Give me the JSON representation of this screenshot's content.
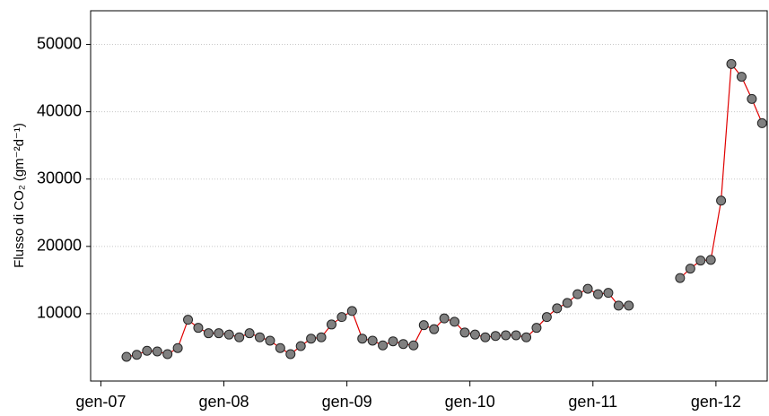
{
  "chart_data": {
    "type": "line",
    "y_label": "Flusso di CO₂ (gm⁻²d⁻¹)",
    "x": [
      "2007-03",
      "2007-04",
      "2007-05",
      "2007-06",
      "2007-07",
      "2007-08",
      "2007-09",
      "2007-10",
      "2007-11",
      "2007-12",
      "2008-01",
      "2008-02",
      "2008-03",
      "2008-04",
      "2008-05",
      "2008-06",
      "2008-07",
      "2008-08",
      "2008-09",
      "2008-10",
      "2008-11",
      "2008-12",
      "2009-01",
      "2009-02",
      "2009-03",
      "2009-04",
      "2009-05",
      "2009-06",
      "2009-07",
      "2009-08",
      "2009-09",
      "2009-10",
      "2009-11",
      "2009-12",
      "2010-01",
      "2010-02",
      "2010-03",
      "2010-04",
      "2010-05",
      "2010-06",
      "2010-07",
      "2010-08",
      "2010-09",
      "2010-10",
      "2010-11",
      "2010-12",
      "2011-01",
      "2011-02",
      "2011-03",
      "2011-04",
      "2011-05",
      "2011-06",
      "2011-07",
      "2011-08",
      "2011-09",
      "2011-10",
      "2011-11",
      "2011-12",
      "2012-01",
      "2012-02",
      "2012-03",
      "2012-04",
      "2012-05"
    ],
    "values": [
      3600,
      3900,
      4500,
      4400,
      4000,
      4900,
      9100,
      7900,
      7100,
      7100,
      6900,
      6500,
      7100,
      6500,
      6000,
      4900,
      4000,
      5200,
      6300,
      6500,
      8400,
      9500,
      10400,
      6300,
      6000,
      5300,
      5900,
      5500,
      5300,
      8300,
      7700,
      9300,
      8800,
      7200,
      6900,
      6500,
      6700,
      6800,
      6800,
      6500,
      7900,
      9500,
      10800,
      11600,
      12900,
      13700,
      12900,
      13100,
      11200,
      11200,
      null,
      null,
      null,
      null,
      15300,
      16700,
      17900,
      18000,
      26800,
      47100,
      45200,
      41900,
      38300
    ],
    "color": "#e00000",
    "marker_color": "#808080",
    "xlim": [
      "2006-12",
      "2012-06"
    ],
    "xticks": [
      {
        "value": "2007-01",
        "label": "gen-07"
      },
      {
        "value": "2008-01",
        "label": "gen-08"
      },
      {
        "value": "2009-01",
        "label": "gen-09"
      },
      {
        "value": "2010-01",
        "label": "gen-10"
      },
      {
        "value": "2011-01",
        "label": "gen-11"
      },
      {
        "value": "2012-01",
        "label": "gen-12"
      }
    ],
    "ylim": [
      0,
      55000
    ],
    "yticks": [
      10000,
      20000,
      30000,
      40000,
      50000
    ],
    "grid": true
  }
}
